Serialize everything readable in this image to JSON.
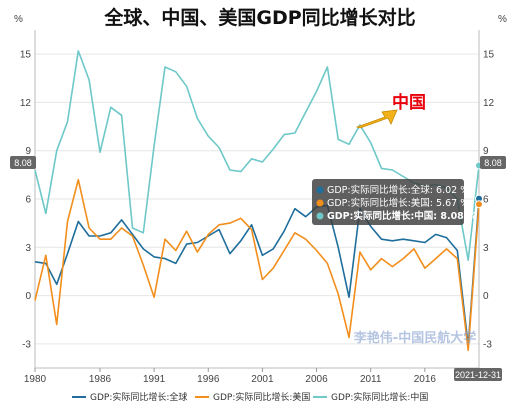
{
  "chart_data": {
    "type": "line",
    "title": "全球、中国、美国GDP同比增长对比",
    "ylabel_left": "%",
    "ylabel_right": "%",
    "ylim": [
      -4.5,
      16.5
    ],
    "yticks": [
      -3,
      0,
      3,
      6,
      9,
      12,
      15
    ],
    "xlim": [
      1980,
      2021
    ],
    "xticks": [
      1980,
      1986,
      1991,
      1996,
      2001,
      2006,
      2011,
      2016
    ],
    "x": [
      1980,
      1981,
      1982,
      1983,
      1984,
      1985,
      1986,
      1987,
      1988,
      1989,
      1990,
      1991,
      1992,
      1993,
      1994,
      1995,
      1996,
      1997,
      1998,
      1999,
      2000,
      2001,
      2002,
      2003,
      2004,
      2005,
      2006,
      2007,
      2008,
      2009,
      2010,
      2011,
      2012,
      2013,
      2014,
      2015,
      2016,
      2017,
      2018,
      2019,
      2020,
      2021
    ],
    "series": [
      {
        "name": "GDP:实际同比增长:全球",
        "color": "#1f6e9c",
        "values": [
          2.1,
          2.0,
          0.7,
          2.6,
          4.6,
          3.7,
          3.7,
          3.9,
          4.7,
          3.8,
          2.9,
          2.4,
          2.3,
          2.0,
          3.2,
          3.3,
          3.7,
          4.1,
          2.6,
          3.4,
          4.4,
          2.5,
          2.9,
          4.0,
          5.4,
          4.9,
          5.5,
          5.6,
          3.0,
          -0.1,
          5.4,
          4.3,
          3.5,
          3.4,
          3.5,
          3.4,
          3.3,
          3.8,
          3.6,
          2.8,
          -3.1,
          6.02
        ]
      },
      {
        "name": "GDP:实际同比增长:美国",
        "color": "#f28e1c",
        "values": [
          -0.3,
          2.5,
          -1.8,
          4.6,
          7.2,
          4.2,
          3.5,
          3.5,
          4.2,
          3.7,
          1.9,
          -0.1,
          3.5,
          2.8,
          4.0,
          2.7,
          3.8,
          4.4,
          4.5,
          4.8,
          4.1,
          1.0,
          1.7,
          2.8,
          3.9,
          3.5,
          2.8,
          2.0,
          0.1,
          -2.6,
          2.7,
          1.6,
          2.3,
          1.8,
          2.3,
          2.9,
          1.7,
          2.3,
          2.9,
          2.3,
          -3.4,
          5.67
        ]
      },
      {
        "name": "GDP:实际同比增长:中国",
        "color": "#6ec8c8",
        "values": [
          7.8,
          5.1,
          9.0,
          10.8,
          15.2,
          13.4,
          8.9,
          11.7,
          11.2,
          4.2,
          3.9,
          9.3,
          14.2,
          13.9,
          13.0,
          11.0,
          9.9,
          9.2,
          7.8,
          7.7,
          8.5,
          8.3,
          9.1,
          10.0,
          10.1,
          11.4,
          12.7,
          14.2,
          9.7,
          9.4,
          10.6,
          9.5,
          7.9,
          7.8,
          7.4,
          7.0,
          6.8,
          6.9,
          6.7,
          6.0,
          2.2,
          8.08
        ]
      }
    ],
    "legend_position": "bottom",
    "grid": true,
    "last_values": {
      "global": "6.02",
      "usa": "5.67",
      "china": "8.08"
    },
    "badge_left": "8.08",
    "badge_right": "8.08",
    "date_badge": "2021-12-31",
    "tooltip": [
      {
        "label": "GDP:实际同比增长:全球: 6.02  %",
        "color": "#1f6e9c"
      },
      {
        "label": "GDP:实际同比增长:美国: 5.67  %",
        "color": "#f28e1c"
      },
      {
        "label": "GDP:实际同比增长:中国: 8.08  %",
        "color": "#6ec8c8"
      }
    ],
    "annotation": "中国",
    "watermark": "李艳伟-中国民航大学"
  }
}
